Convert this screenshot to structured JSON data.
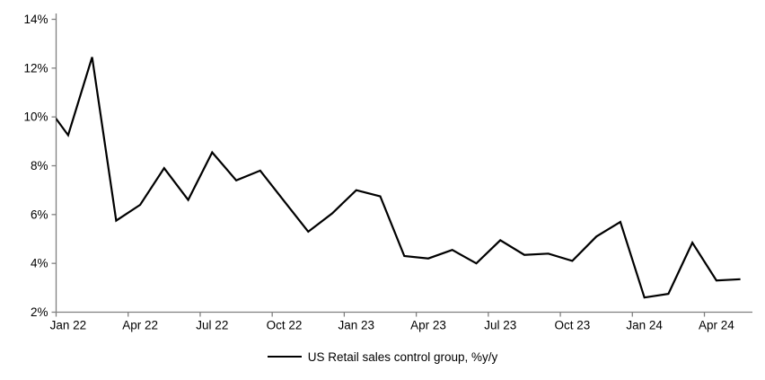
{
  "chart_data": {
    "type": "line",
    "title": "",
    "legend_label": "US Retail sales control group, %y/y",
    "legend_position": "bottom-center",
    "grid": false,
    "ylim": [
      2,
      14
    ],
    "y_tick_labels": [
      "2%",
      "4%",
      "6%",
      "8%",
      "10%",
      "12%",
      "14%"
    ],
    "y_ticks_values": [
      2,
      4,
      6,
      8,
      10,
      12,
      14
    ],
    "x_tick_labels": [
      "Jan 22",
      "Apr 22",
      "Jul 22",
      "Oct 22",
      "Jan 23",
      "Apr 23",
      "Jul 23",
      "Oct 23",
      "Jan 24",
      "Apr 24"
    ],
    "x_tick_label_interval_months": 3,
    "note": "First point (Dec 21) lies left of the y-axis; its segment is clipped at the plot edge (line enters axis at ~9.9%).",
    "series": [
      {
        "name": "US Retail sales control group, %y/y",
        "color": "#000000",
        "x": [
          "Dec 21",
          "Jan 22",
          "Feb 22",
          "Mar 22",
          "Apr 22",
          "May 22",
          "Jun 22",
          "Jul 22",
          "Aug 22",
          "Sep 22",
          "Oct 22",
          "Nov 22",
          "Dec 22",
          "Jan 23",
          "Feb 23",
          "Mar 23",
          "Apr 23",
          "May 23",
          "Jun 23",
          "Jul 23",
          "Aug 23",
          "Sep 23",
          "Oct 23",
          "Nov 23",
          "Dec 23",
          "Jan 24",
          "Feb 24",
          "Mar 24",
          "Apr 24",
          "May 24"
        ],
        "values": [
          10.6,
          9.25,
          12.45,
          5.75,
          6.4,
          7.9,
          6.6,
          8.55,
          7.4,
          7.8,
          6.55,
          5.3,
          6.05,
          7.0,
          6.75,
          4.3,
          4.2,
          4.55,
          4.0,
          4.95,
          4.35,
          4.4,
          4.1,
          5.1,
          5.7,
          2.6,
          2.75,
          4.85,
          3.3,
          3.35
        ]
      }
    ],
    "colors": {
      "line": "#000000",
      "axis": "#808080",
      "tick_text": "#000000",
      "background": "#ffffff"
    }
  }
}
